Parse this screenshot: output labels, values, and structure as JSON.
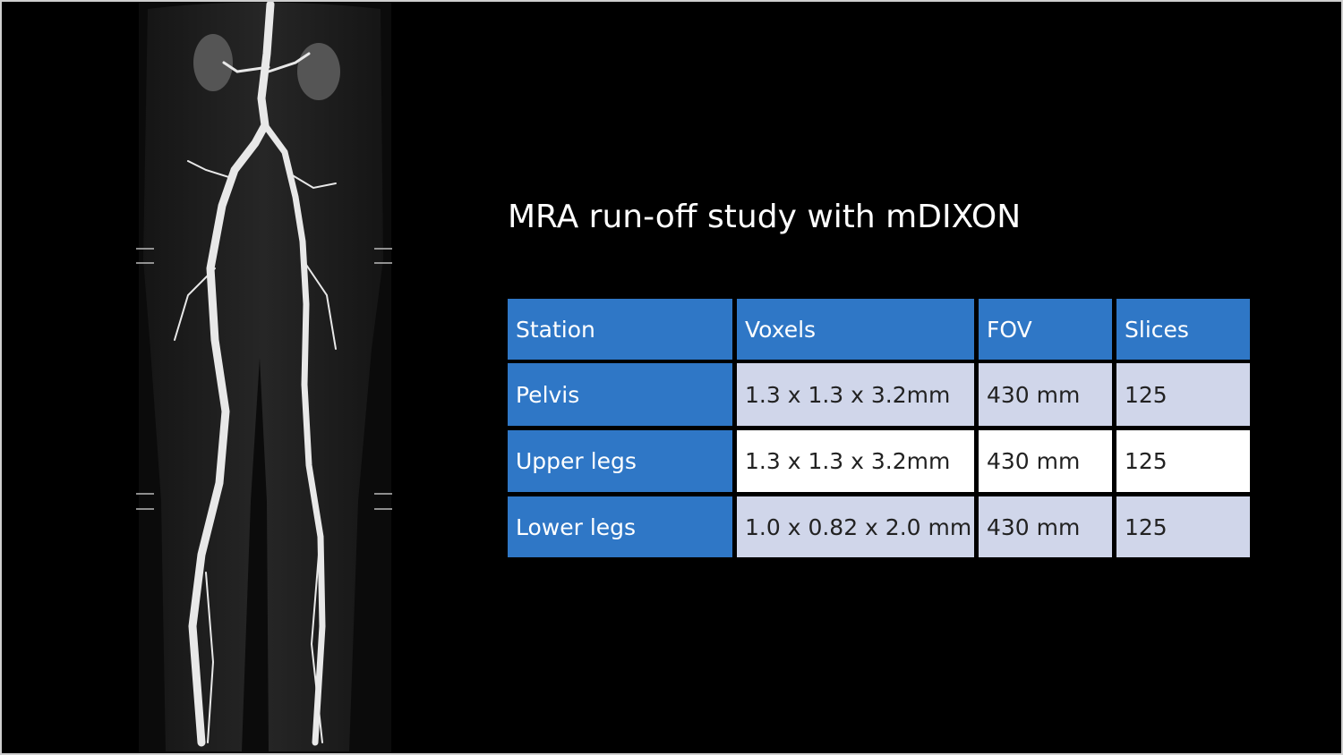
{
  "title": "MRA run-off study with mDIXON",
  "table": {
    "header": [
      "Station",
      "Voxels",
      "FOV",
      "Slices"
    ],
    "rows": [
      [
        "Pelvis",
        "1.3 x 1.3 x 3.2mm",
        "430 mm",
        "125"
      ],
      [
        "Upper legs",
        "1.3 x 1.3 x 3.2mm",
        "430 mm",
        "125"
      ],
      [
        "Lower legs",
        "1.0 x 0.82 x 2.0 mm",
        "430 mm",
        "125"
      ]
    ]
  }
}
